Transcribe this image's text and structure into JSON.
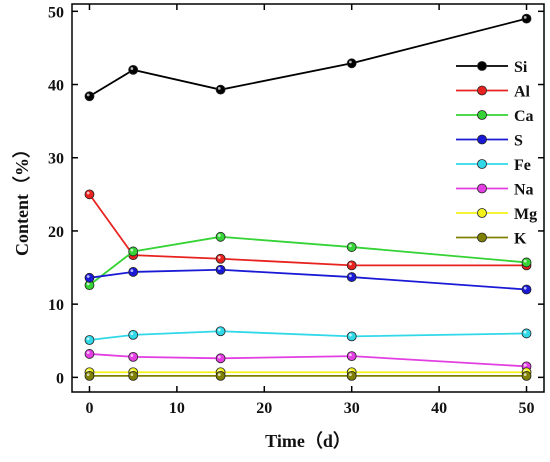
{
  "chart_data": {
    "type": "line",
    "xlabel": "Time（d）",
    "ylabel": "Content（%）",
    "xlim": [
      -2,
      52
    ],
    "ylim": [
      -2,
      51
    ],
    "xticks": [
      0,
      10,
      20,
      30,
      40,
      50
    ],
    "yticks": [
      0,
      10,
      20,
      30,
      40,
      50
    ],
    "x": [
      0,
      5,
      15,
      30,
      50
    ],
    "legend_position": "top-right",
    "series": [
      {
        "name": "Si",
        "color": "#000000",
        "values": [
          38.4,
          42.0,
          39.3,
          42.9,
          49.0
        ]
      },
      {
        "name": "Al",
        "color": "#e8231f",
        "values": [
          25.0,
          16.7,
          16.2,
          15.3,
          15.3
        ]
      },
      {
        "name": "Ca",
        "color": "#35d335",
        "values": [
          12.6,
          17.2,
          19.2,
          17.8,
          15.7
        ]
      },
      {
        "name": "S",
        "color": "#1a1ad6",
        "values": [
          13.6,
          14.4,
          14.7,
          13.7,
          12.0
        ]
      },
      {
        "name": "Fe",
        "color": "#30d8e8",
        "values": [
          5.1,
          5.8,
          6.3,
          5.6,
          6.0
        ]
      },
      {
        "name": "Na",
        "color": "#e23ee2",
        "values": [
          3.2,
          2.8,
          2.6,
          2.9,
          1.5
        ]
      },
      {
        "name": "Mg",
        "color": "#f2f21a",
        "values": [
          0.7,
          0.7,
          0.7,
          0.7,
          0.7
        ]
      },
      {
        "name": "K",
        "color": "#808000",
        "values": [
          0.2,
          0.2,
          0.2,
          0.2,
          0.2
        ]
      }
    ]
  }
}
